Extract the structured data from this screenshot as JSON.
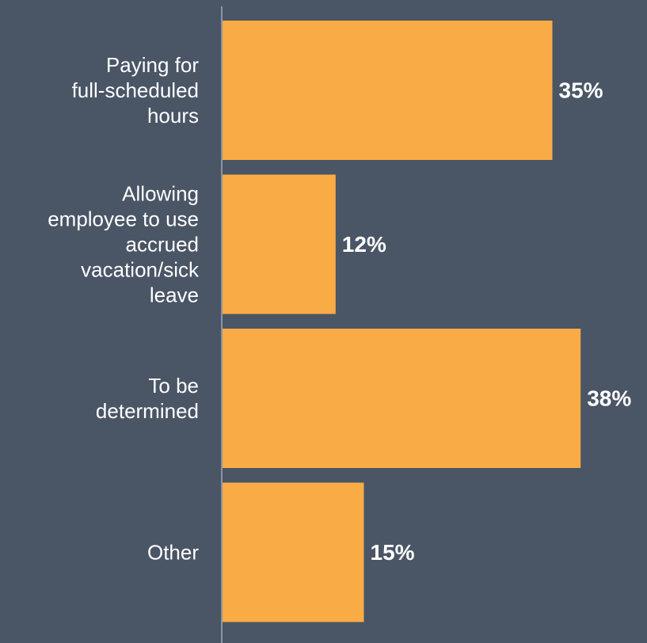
{
  "chart_data": {
    "type": "bar",
    "orientation": "horizontal",
    "categories": [
      [
        "Paying for",
        "full-scheduled",
        "hours"
      ],
      [
        "Allowing",
        "employee to use",
        "accrued",
        "vacation/sick",
        "leave"
      ],
      [
        "To be",
        "determined"
      ],
      [
        "Other"
      ]
    ],
    "values": [
      35,
      12,
      38,
      15
    ],
    "value_labels": [
      "35%",
      "12%",
      "38%",
      "15%"
    ],
    "xlim": [
      0,
      100
    ],
    "grid": false,
    "legend": "none"
  },
  "colors": {
    "background": "#4a5566",
    "bar": "#f9ac45",
    "axis": "#8a94a3",
    "text": "#ffffff"
  }
}
